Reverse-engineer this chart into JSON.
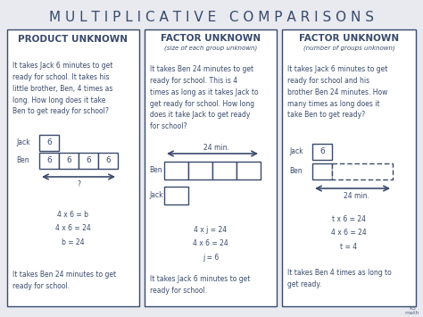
{
  "title": "M U L T I P L I C A T I V E   C O M P A R I S O N S",
  "bg_color": "#e8eaf0",
  "card_bg": "#ffffff",
  "text_color": "#3a4a6b",
  "border_color": "#3a4a6b",
  "title_fontsize": 11,
  "card_title_fontsize": 7.5,
  "body_fontsize": 5.5,
  "panel1_title": "PRODUCT UNKNOWN",
  "panel1_body": "It takes Jack 6 minutes to get\nready for school. It takes his\nlittle brother, Ben, 4 times as\nlong. How long does it take\nBen to get ready for school?",
  "panel1_eq": "4 x 6 = b\n4 x 6 = 24\nb = 24",
  "panel1_answer": "It takes Ben 24 minutes to get\nready for school.",
  "panel1_jack_label": "Jack",
  "panel1_ben_label": "Ben",
  "panel1_jack_val": "6",
  "panel1_ben_vals": [
    "6",
    "6",
    "6",
    "6"
  ],
  "panel1_arrow_label": "?",
  "panel2_title": "FACTOR UNKNOWN",
  "panel2_subtitle": "(size of each group unknown)",
  "panel2_body": "It takes Ben 24 minutes to get\nready for school. This is 4\ntimes as long as it takes Jack to\nget ready for school. How long\ndoes it take Jack to get ready\nfor school?",
  "panel2_eq": "4 x j = 24\n4 x 6 = 24\nj = 6",
  "panel2_answer": "It takes Jack 6 minutes to get\nready for school.",
  "panel2_ben_label": "Ben",
  "panel2_jack_label": "Jack",
  "panel2_arrow_label": "24 min.",
  "panel3_title": "FACTOR UNKNOWN",
  "panel3_subtitle": "(number of groups unknown)",
  "panel3_body": "It takes Jack 6 minutes to get\nready for school and his\nbrother Ben 24 minutes. How\nmany times as long does it\ntake Ben to get ready?",
  "panel3_eq": "t x 6 = 24\n4 x 6 = 24\nt = 4",
  "panel3_answer": "It takes Ben 4 times as long to\nget ready.",
  "panel3_jack_label": "Jack",
  "panel3_ben_label": "Ben",
  "panel3_jack_val": "6",
  "panel3_arrow_label": "24 min.",
  "watermark": "K5\nmath"
}
